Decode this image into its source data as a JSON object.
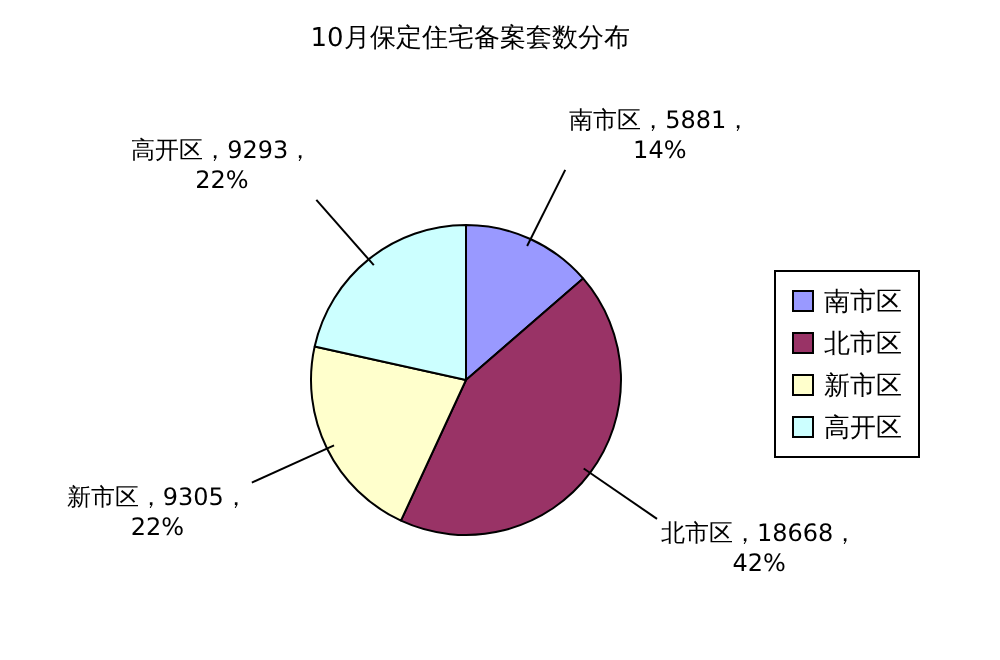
{
  "chart_data": {
    "type": "pie",
    "title": "10月保定住宅备案套数分布",
    "categories": [
      "南市区",
      "北市区",
      "新市区",
      "高开区"
    ],
    "values": [
      5881,
      18668,
      9305,
      9293
    ],
    "colors": [
      "#9999ff",
      "#993366",
      "#ffffcc",
      "#ccffff"
    ],
    "value_labels": [
      "南市区，5881，14%",
      "北市区，18668，42%",
      "新市区，9305，22%",
      "高开区，9293，22%"
    ],
    "legend": "right"
  }
}
